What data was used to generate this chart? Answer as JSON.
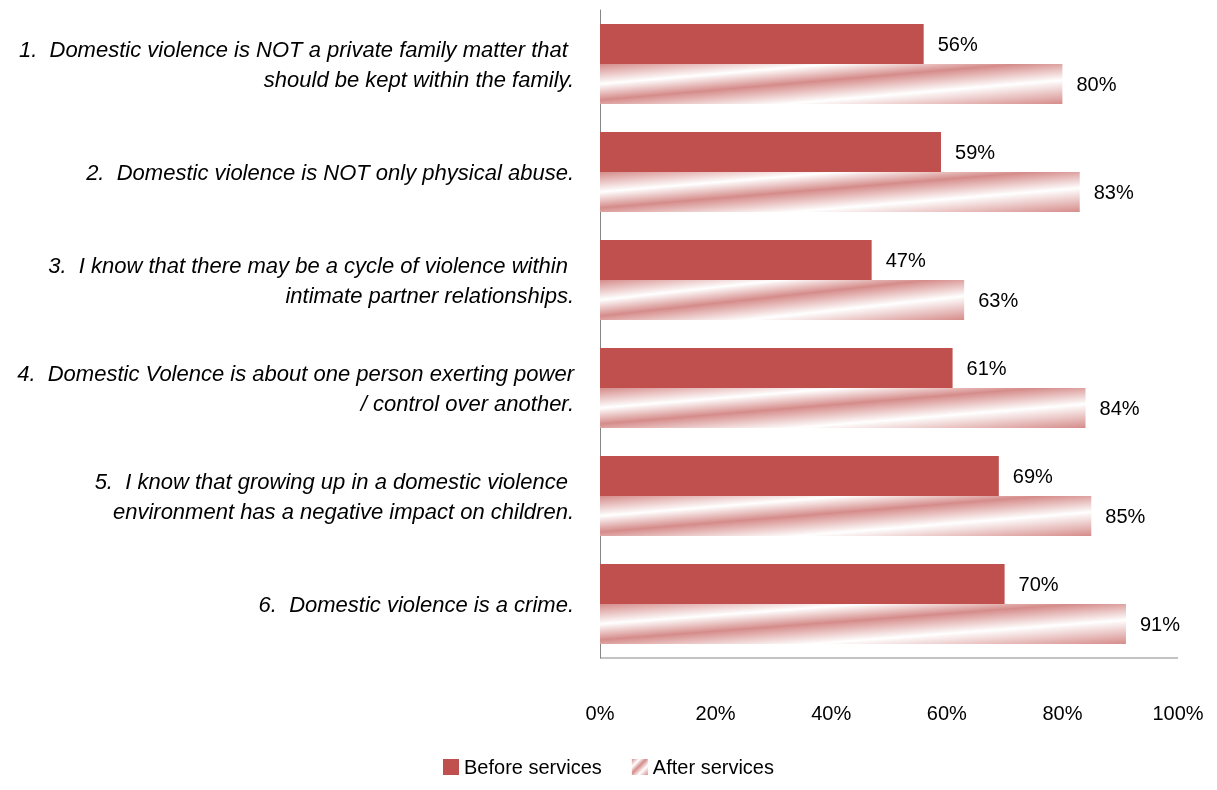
{
  "chart_data": {
    "type": "bar",
    "orientation": "horizontal",
    "categories": [
      "1.  Domestic violence is NOT a private family matter that should be kept within the family.",
      "2.  Domestic violence is NOT only physical abuse.",
      "3.  I know that there may be a cycle of violence within intimate partner relationships.",
      "4.  Domestic Volence is about one person exerting power / control over another.",
      "5.  I know that growing up in a domestic violence environment has a negative impact on children.",
      "6.  Domestic violence is a crime."
    ],
    "series": [
      {
        "name": "Before services",
        "color": "#c0504d",
        "values": [
          56,
          59,
          47,
          61,
          69,
          70
        ],
        "value_labels": [
          "56%",
          "59%",
          "47%",
          "61%",
          "69%",
          "70%"
        ]
      },
      {
        "name": "After services",
        "color": "#d58c8a",
        "values": [
          80,
          83,
          63,
          84,
          85,
          91
        ],
        "value_labels": [
          "80%",
          "83%",
          "63%",
          "84%",
          "85%",
          "91%"
        ]
      }
    ],
    "xlim": [
      0,
      100
    ],
    "xticks": [
      {
        "value": 0,
        "label": "0%"
      },
      {
        "value": 20,
        "label": "20%"
      },
      {
        "value": 40,
        "label": "40%"
      },
      {
        "value": 60,
        "label": "60%"
      },
      {
        "value": 80,
        "label": "80%"
      },
      {
        "value": 100,
        "label": "100%"
      }
    ],
    "grid": false,
    "legend": "bottom"
  }
}
